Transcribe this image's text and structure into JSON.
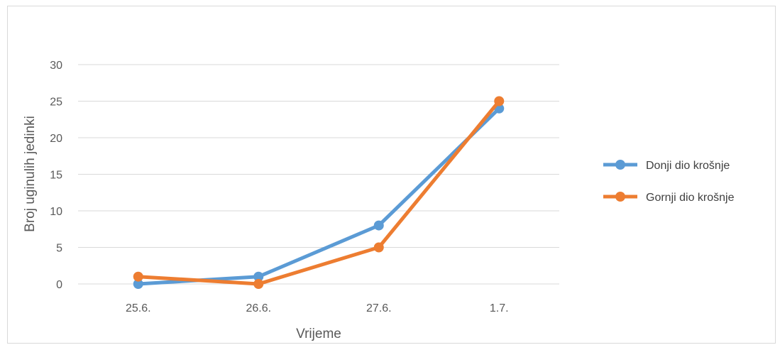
{
  "chart_data": {
    "type": "line",
    "title": "",
    "xlabel": "Vrijeme",
    "ylabel": "Broj uginulih jedinki",
    "categories": [
      "25.6.",
      "26.6.",
      "27.6.",
      "1.7."
    ],
    "ylim": [
      0,
      30
    ],
    "yticks": [
      0,
      5,
      10,
      15,
      20,
      25,
      30
    ],
    "grid": true,
    "legend_position": "right",
    "series": [
      {
        "name": "Donji dio krošnje",
        "values": [
          0,
          1,
          8,
          24
        ],
        "color": "#5b9bd5"
      },
      {
        "name": "Gornji dio krošnje",
        "values": [
          1,
          0,
          5,
          25
        ],
        "color": "#ed7d31"
      }
    ]
  }
}
